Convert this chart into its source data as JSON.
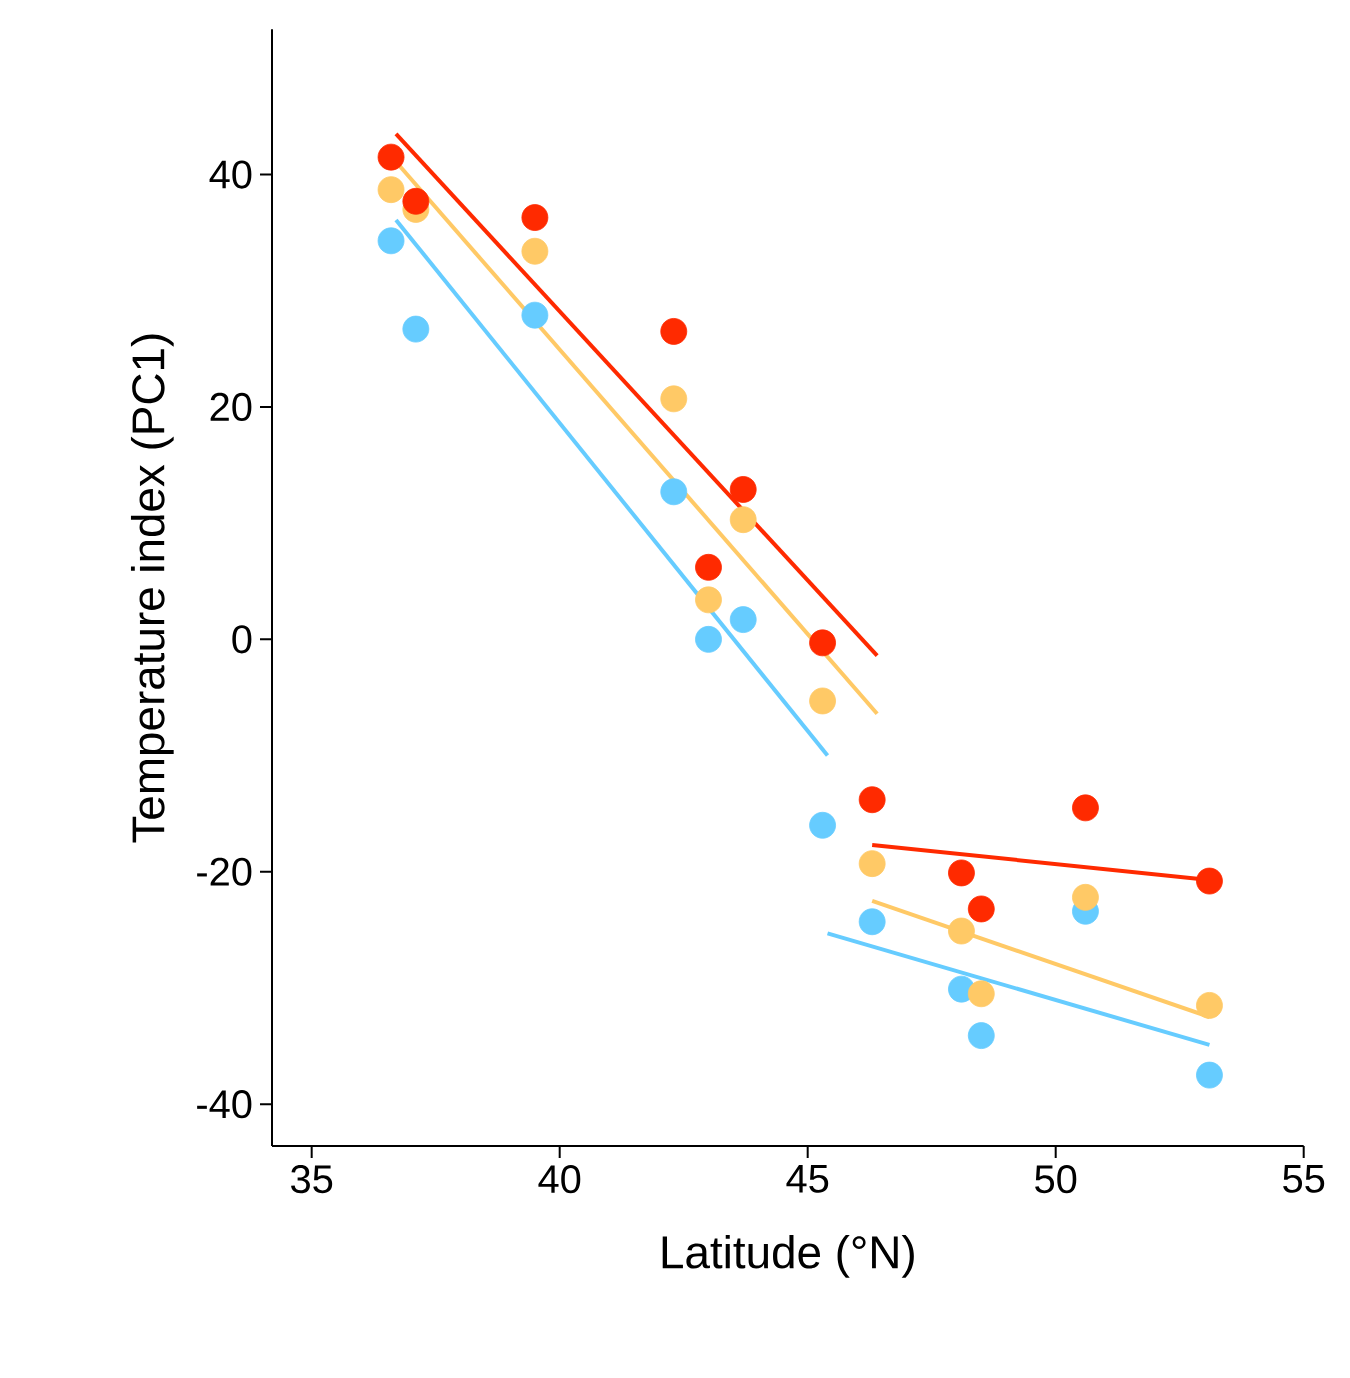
{
  "chart_data": {
    "type": "scatter",
    "xlabel": "Latitude (°N)",
    "ylabel": "Temperature index (PC1)",
    "xlim": [
      34.2,
      55
    ],
    "ylim": [
      -43.6,
      52.5
    ],
    "xticks": [
      35,
      40,
      45,
      50,
      55
    ],
    "yticks": [
      -40,
      -20,
      0,
      20,
      40
    ],
    "grid": false,
    "series": [
      {
        "marker": "circle",
        "color": "#66ccff",
        "x": [
          36.6,
          37.1,
          39.5,
          42.3,
          43.7,
          43.0,
          45.3,
          46.3,
          48.1,
          48.5,
          50.6,
          53.1
        ],
        "values": [
          34.3,
          26.7,
          27.9,
          12.7,
          1.7,
          0,
          -16.0,
          -24.3,
          -30.1,
          -34.1,
          -23.4,
          -37.5
        ]
      },
      {
        "marker": "circle",
        "color": "#ffc966",
        "x": [
          36.6,
          37.1,
          39.5,
          42.3,
          43.7,
          43.0,
          45.3,
          46.3,
          48.1,
          48.5,
          50.6,
          53.1
        ],
        "values": [
          38.7,
          37.0,
          33.4,
          20.7,
          10.3,
          3.4,
          -5.3,
          -19.3,
          -25.1,
          -30.5,
          -22.2,
          -31.5
        ]
      },
      {
        "marker": "circle",
        "color": "#ff2a00",
        "x": [
          36.6,
          37.1,
          39.5,
          42.3,
          43.7,
          43.0,
          45.3,
          46.3,
          48.1,
          48.5,
          50.6,
          53.1
        ],
        "values": [
          41.5,
          37.7,
          36.3,
          26.5,
          12.9,
          6.2,
          -0.3,
          -13.8,
          -20.1,
          -23.2,
          -14.5,
          -20.8
        ]
      },
      {
        "type": "line",
        "marker": "none",
        "color": "#66ccff",
        "x": [
          36.7,
          45.4
        ],
        "values": [
          36.1,
          -10.0
        ]
      },
      {
        "type": "line",
        "marker": "none",
        "color": "#66ccff",
        "x": [
          45.4,
          53.1
        ],
        "values": [
          -25.3,
          -34.9
        ]
      },
      {
        "type": "line",
        "marker": "none",
        "color": "#ffc966",
        "x": [
          36.7,
          46.4
        ],
        "values": [
          41.1,
          -6.4
        ]
      },
      {
        "type": "line",
        "marker": "none",
        "color": "#ffc966",
        "x": [
          46.3,
          53.1
        ],
        "values": [
          -22.5,
          -32.5
        ]
      },
      {
        "type": "line",
        "marker": "none",
        "color": "#ff2a00",
        "x": [
          36.7,
          46.4
        ],
        "values": [
          43.5,
          -1.4
        ]
      },
      {
        "type": "line",
        "marker": "none",
        "color": "#ff2a00",
        "x": [
          46.3,
          53.1
        ],
        "values": [
          -17.7,
          -20.7
        ]
      }
    ]
  }
}
